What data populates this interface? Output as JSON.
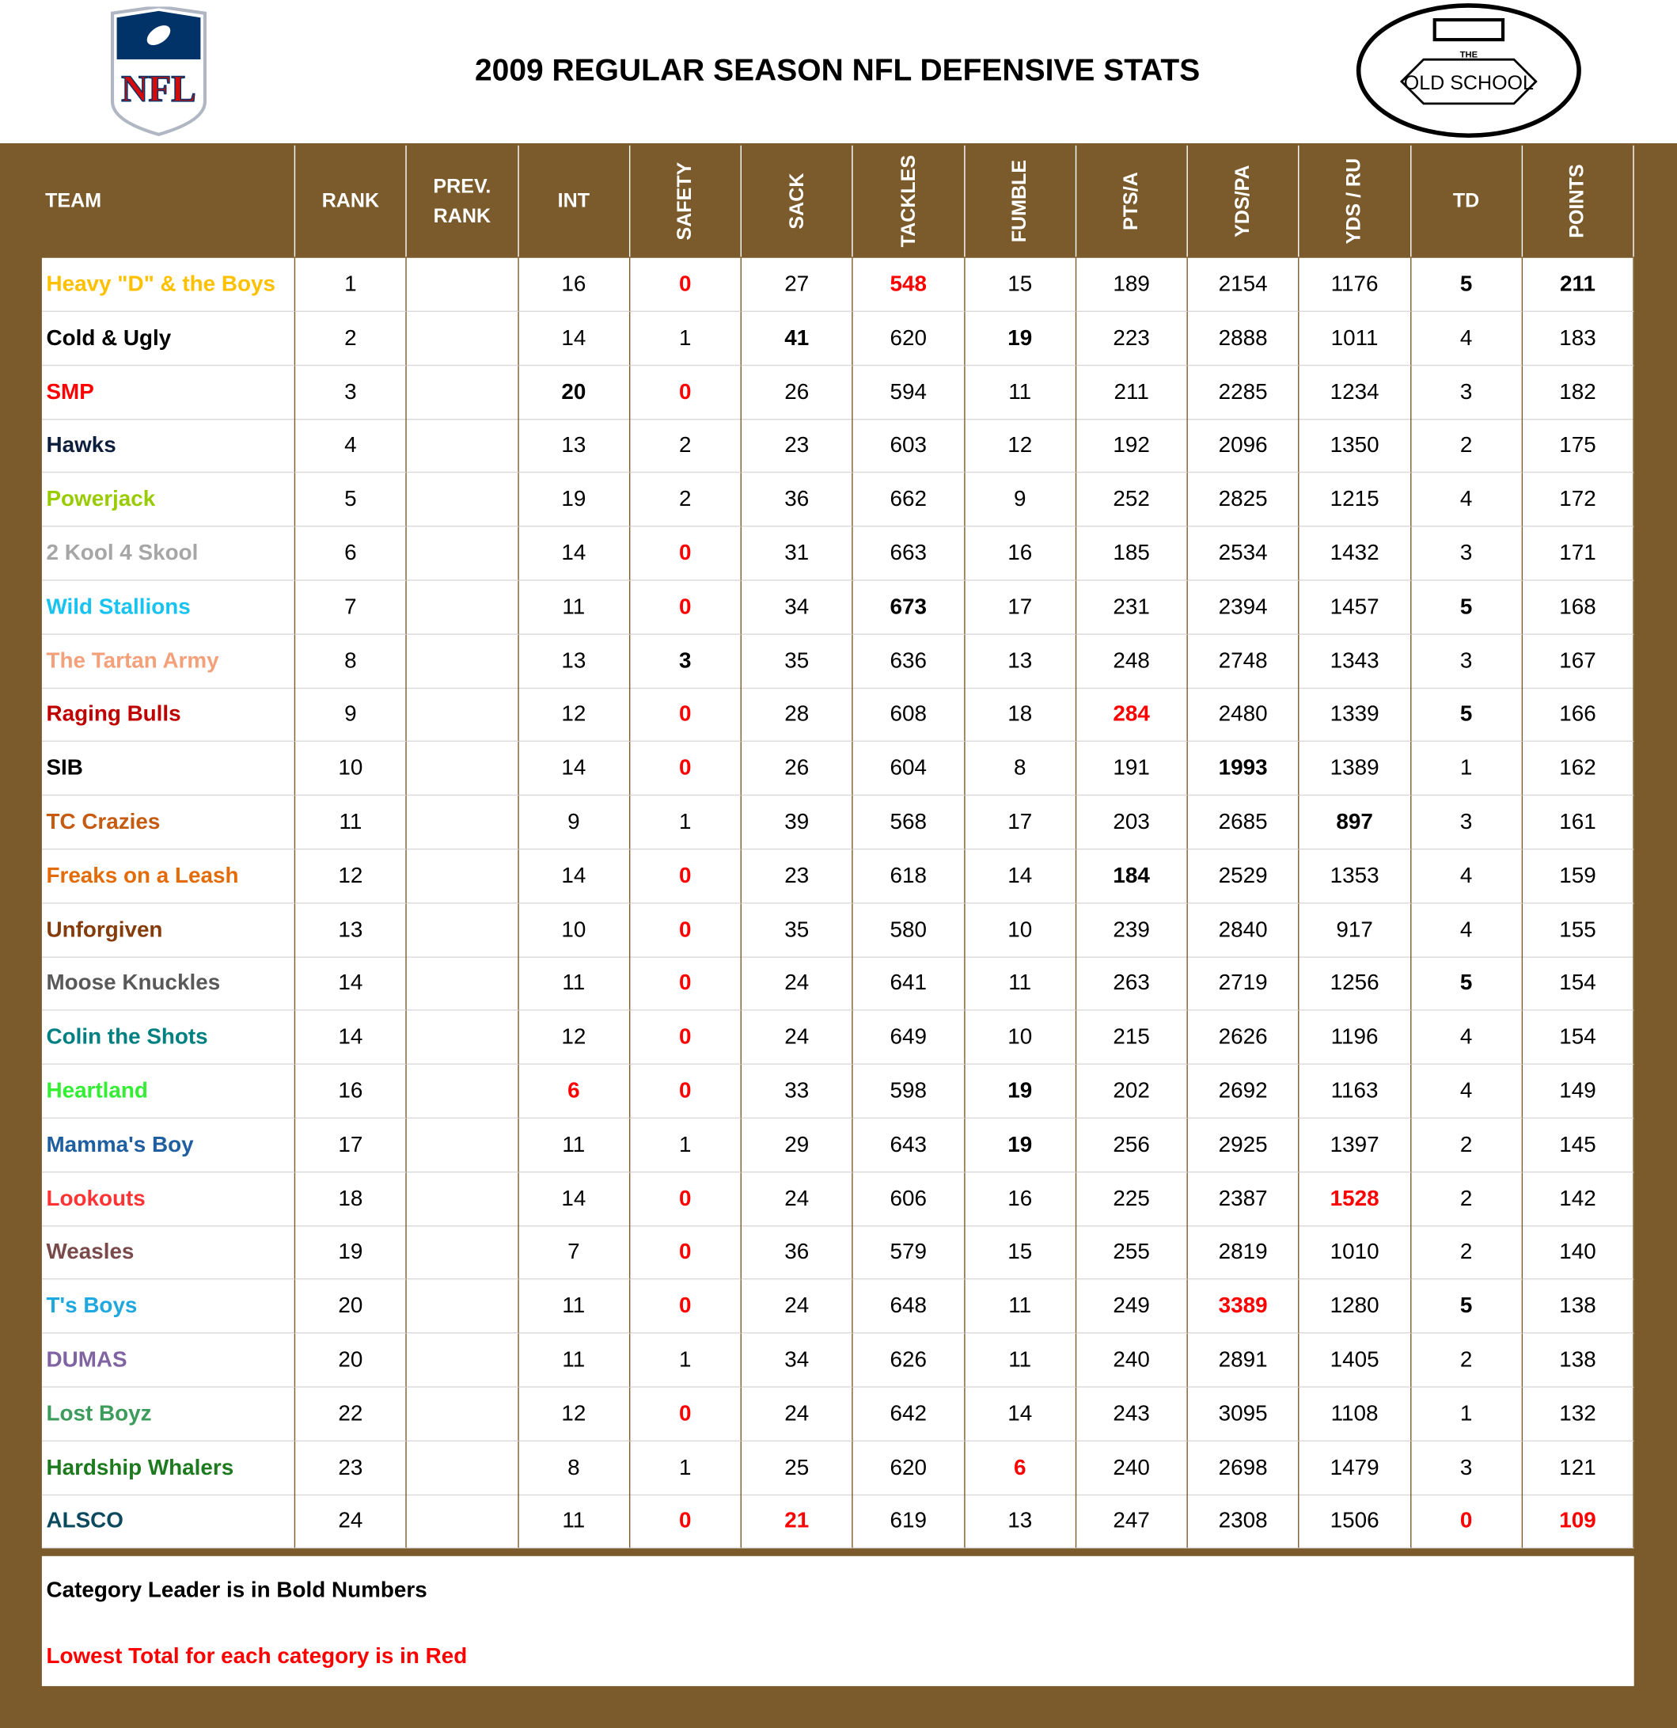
{
  "header": {
    "title": "2009 REGULAR SEASON NFL DEFENSIVE STATS",
    "left_logo": "NFL",
    "right_logo_top": "THE",
    "right_logo_main": "OLD SCHOOL"
  },
  "table": {
    "columns": [
      {
        "label": "TEAM",
        "vertical": false
      },
      {
        "label": "RANK",
        "vertical": false
      },
      {
        "label": "PREV. RANK",
        "vertical": false
      },
      {
        "label": "INT",
        "vertical": false
      },
      {
        "label": "SAFETY",
        "vertical": true
      },
      {
        "label": "SACK",
        "vertical": true
      },
      {
        "label": "TACKLES",
        "vertical": true
      },
      {
        "label": "FUMBLE",
        "vertical": true
      },
      {
        "label": "PTS/A",
        "vertical": true
      },
      {
        "label": "YDS/PA",
        "vertical": true
      },
      {
        "label": "YDS / RU",
        "vertical": true
      },
      {
        "label": "TD",
        "vertical": false
      },
      {
        "label": "POINTS",
        "vertical": true
      }
    ],
    "rows": [
      {
        "team": "Heavy \"D\" & the Boys",
        "color": "#ffc000",
        "cells": [
          1,
          null,
          16,
          0,
          27,
          548,
          15,
          189,
          2154,
          1176,
          5,
          211
        ],
        "leader": [
          10,
          11
        ],
        "lowest": [
          3,
          5
        ]
      },
      {
        "team": "Cold & Ugly",
        "color": "#000000",
        "cells": [
          2,
          null,
          14,
          1,
          41,
          620,
          19,
          223,
          2888,
          1011,
          4,
          183
        ],
        "leader": [
          4,
          6
        ],
        "lowest": []
      },
      {
        "team": "SMP",
        "color": "#ff0000",
        "cells": [
          3,
          null,
          20,
          0,
          26,
          594,
          11,
          211,
          2285,
          1234,
          3,
          182
        ],
        "leader": [
          2
        ],
        "lowest": [
          3
        ]
      },
      {
        "team": "Hawks",
        "color": "#0d1f3c",
        "cells": [
          4,
          null,
          13,
          2,
          23,
          603,
          12,
          192,
          2096,
          1350,
          2,
          175
        ],
        "leader": [],
        "lowest": []
      },
      {
        "team": "Powerjack",
        "color": "#99cc00",
        "cells": [
          5,
          null,
          19,
          2,
          36,
          662,
          9,
          252,
          2825,
          1215,
          4,
          172
        ],
        "leader": [],
        "lowest": []
      },
      {
        "team": "2 Kool 4 Skool",
        "color": "#a6a6a6",
        "cells": [
          6,
          null,
          14,
          0,
          31,
          663,
          16,
          185,
          2534,
          1432,
          3,
          171
        ],
        "leader": [],
        "lowest": [
          3
        ]
      },
      {
        "team": "Wild Stallions",
        "color": "#19c3f0",
        "cells": [
          7,
          null,
          11,
          0,
          34,
          673,
          17,
          231,
          2394,
          1457,
          5,
          168
        ],
        "leader": [
          5,
          10
        ],
        "lowest": [
          3
        ]
      },
      {
        "team": "The Tartan Army",
        "color": "#f4a07a",
        "cells": [
          8,
          null,
          13,
          3,
          35,
          636,
          13,
          248,
          2748,
          1343,
          3,
          167
        ],
        "leader": [
          3
        ],
        "lowest": []
      },
      {
        "team": "Raging Bulls",
        "color": "#c00000",
        "cells": [
          9,
          null,
          12,
          0,
          28,
          608,
          18,
          284,
          2480,
          1339,
          5,
          166
        ],
        "leader": [
          10
        ],
        "lowest": [
          3,
          7
        ]
      },
      {
        "team": "SIB",
        "color": "#000000",
        "cells": [
          10,
          null,
          14,
          0,
          26,
          604,
          8,
          191,
          1993,
          1389,
          1,
          162
        ],
        "leader": [
          8
        ],
        "lowest": [
          3
        ]
      },
      {
        "team": "TC Crazies",
        "color": "#c55a11",
        "cells": [
          11,
          null,
          9,
          1,
          39,
          568,
          17,
          203,
          2685,
          897,
          3,
          161
        ],
        "leader": [
          9
        ],
        "lowest": []
      },
      {
        "team": "Freaks on a Leash",
        "color": "#e36c09",
        "cells": [
          12,
          null,
          14,
          0,
          23,
          618,
          14,
          184,
          2529,
          1353,
          4,
          159
        ],
        "leader": [
          7
        ],
        "lowest": [
          3
        ]
      },
      {
        "team": "Unforgiven",
        "color": "#843c0c",
        "cells": [
          13,
          null,
          10,
          0,
          35,
          580,
          10,
          239,
          2840,
          917,
          4,
          155
        ],
        "leader": [],
        "lowest": [
          3
        ]
      },
      {
        "team": "Moose Knuckles",
        "color": "#595959",
        "cells": [
          14,
          null,
          11,
          0,
          24,
          641,
          11,
          263,
          2719,
          1256,
          5,
          154
        ],
        "leader": [
          10
        ],
        "lowest": [
          3
        ]
      },
      {
        "team": "Colin the Shots",
        "color": "#008080",
        "cells": [
          14,
          null,
          12,
          0,
          24,
          649,
          10,
          215,
          2626,
          1196,
          4,
          154
        ],
        "leader": [],
        "lowest": [
          3
        ]
      },
      {
        "team": "Heartland",
        "color": "#33ee33",
        "cells": [
          16,
          null,
          6,
          0,
          33,
          598,
          19,
          202,
          2692,
          1163,
          4,
          149
        ],
        "leader": [
          6
        ],
        "lowest": [
          2,
          3
        ]
      },
      {
        "team": "Mamma's Boy",
        "color": "#1f5fa0",
        "cells": [
          17,
          null,
          11,
          1,
          29,
          643,
          19,
          256,
          2925,
          1397,
          2,
          145
        ],
        "leader": [
          6
        ],
        "lowest": []
      },
      {
        "team": "Lookouts",
        "color": "#ff3333",
        "cells": [
          18,
          null,
          14,
          0,
          24,
          606,
          16,
          225,
          2387,
          1528,
          2,
          142
        ],
        "leader": [],
        "lowest": [
          3,
          9
        ]
      },
      {
        "team": "Weasles",
        "color": "#7a4a4a",
        "cells": [
          19,
          null,
          7,
          0,
          36,
          579,
          15,
          255,
          2819,
          1010,
          2,
          140
        ],
        "leader": [],
        "lowest": [
          3
        ]
      },
      {
        "team": "T's Boys",
        "color": "#1fa8e0",
        "cells": [
          20,
          null,
          11,
          0,
          24,
          648,
          11,
          249,
          3389,
          1280,
          5,
          138
        ],
        "leader": [
          10
        ],
        "lowest": [
          3,
          8
        ]
      },
      {
        "team": "DUMAS",
        "color": "#8064a2",
        "cells": [
          20,
          null,
          11,
          1,
          34,
          626,
          11,
          240,
          2891,
          1405,
          2,
          138
        ],
        "leader": [],
        "lowest": []
      },
      {
        "team": "Lost Boyz",
        "color": "#3c9c5c",
        "cells": [
          22,
          null,
          12,
          0,
          24,
          642,
          14,
          243,
          3095,
          1108,
          1,
          132
        ],
        "leader": [],
        "lowest": [
          3
        ]
      },
      {
        "team": "Hardship Whalers",
        "color": "#1e7a1e",
        "cells": [
          23,
          null,
          8,
          1,
          25,
          620,
          6,
          240,
          2698,
          1479,
          3,
          121
        ],
        "leader": [],
        "lowest": [
          6
        ]
      },
      {
        "team": "ALSCO",
        "color": "#0b4a5c",
        "cells": [
          24,
          null,
          11,
          0,
          21,
          619,
          13,
          247,
          2308,
          1506,
          0,
          109
        ],
        "leader": [],
        "lowest": [
          3,
          4,
          10,
          11
        ]
      }
    ]
  },
  "footer": {
    "note_bold": "Category Leader is in Bold Numbers",
    "note_red": "Lowest Total for each category is in Red"
  }
}
